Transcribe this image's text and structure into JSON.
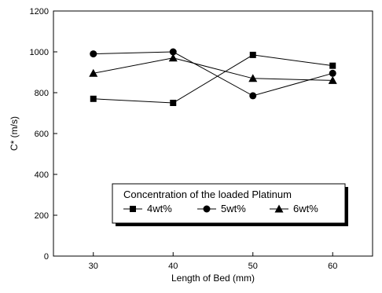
{
  "chart_data": {
    "type": "line",
    "xlabel": "Length of Bed (mm)",
    "ylabel": "C* (m/s)",
    "x": [
      30,
      40,
      50,
      60
    ],
    "xticks": [
      30,
      40,
      50,
      60
    ],
    "yticks": [
      0,
      200,
      400,
      600,
      800,
      1000,
      1200
    ],
    "xlim": [
      25,
      65
    ],
    "ylim": [
      0,
      1200
    ],
    "grid": false,
    "legend": {
      "title": "Concentration of the loaded Platinum",
      "placement": "bottom-center"
    },
    "series": [
      {
        "name": "4wt%",
        "marker": "square",
        "values": [
          770,
          750,
          985,
          932
        ]
      },
      {
        "name": "5wt%",
        "marker": "circle",
        "values": [
          990,
          1000,
          785,
          895
        ]
      },
      {
        "name": "6wt%",
        "marker": "triangle",
        "values": [
          895,
          970,
          870,
          860
        ]
      }
    ],
    "colors": {
      "line": "#000000",
      "marker": "#000000"
    }
  }
}
